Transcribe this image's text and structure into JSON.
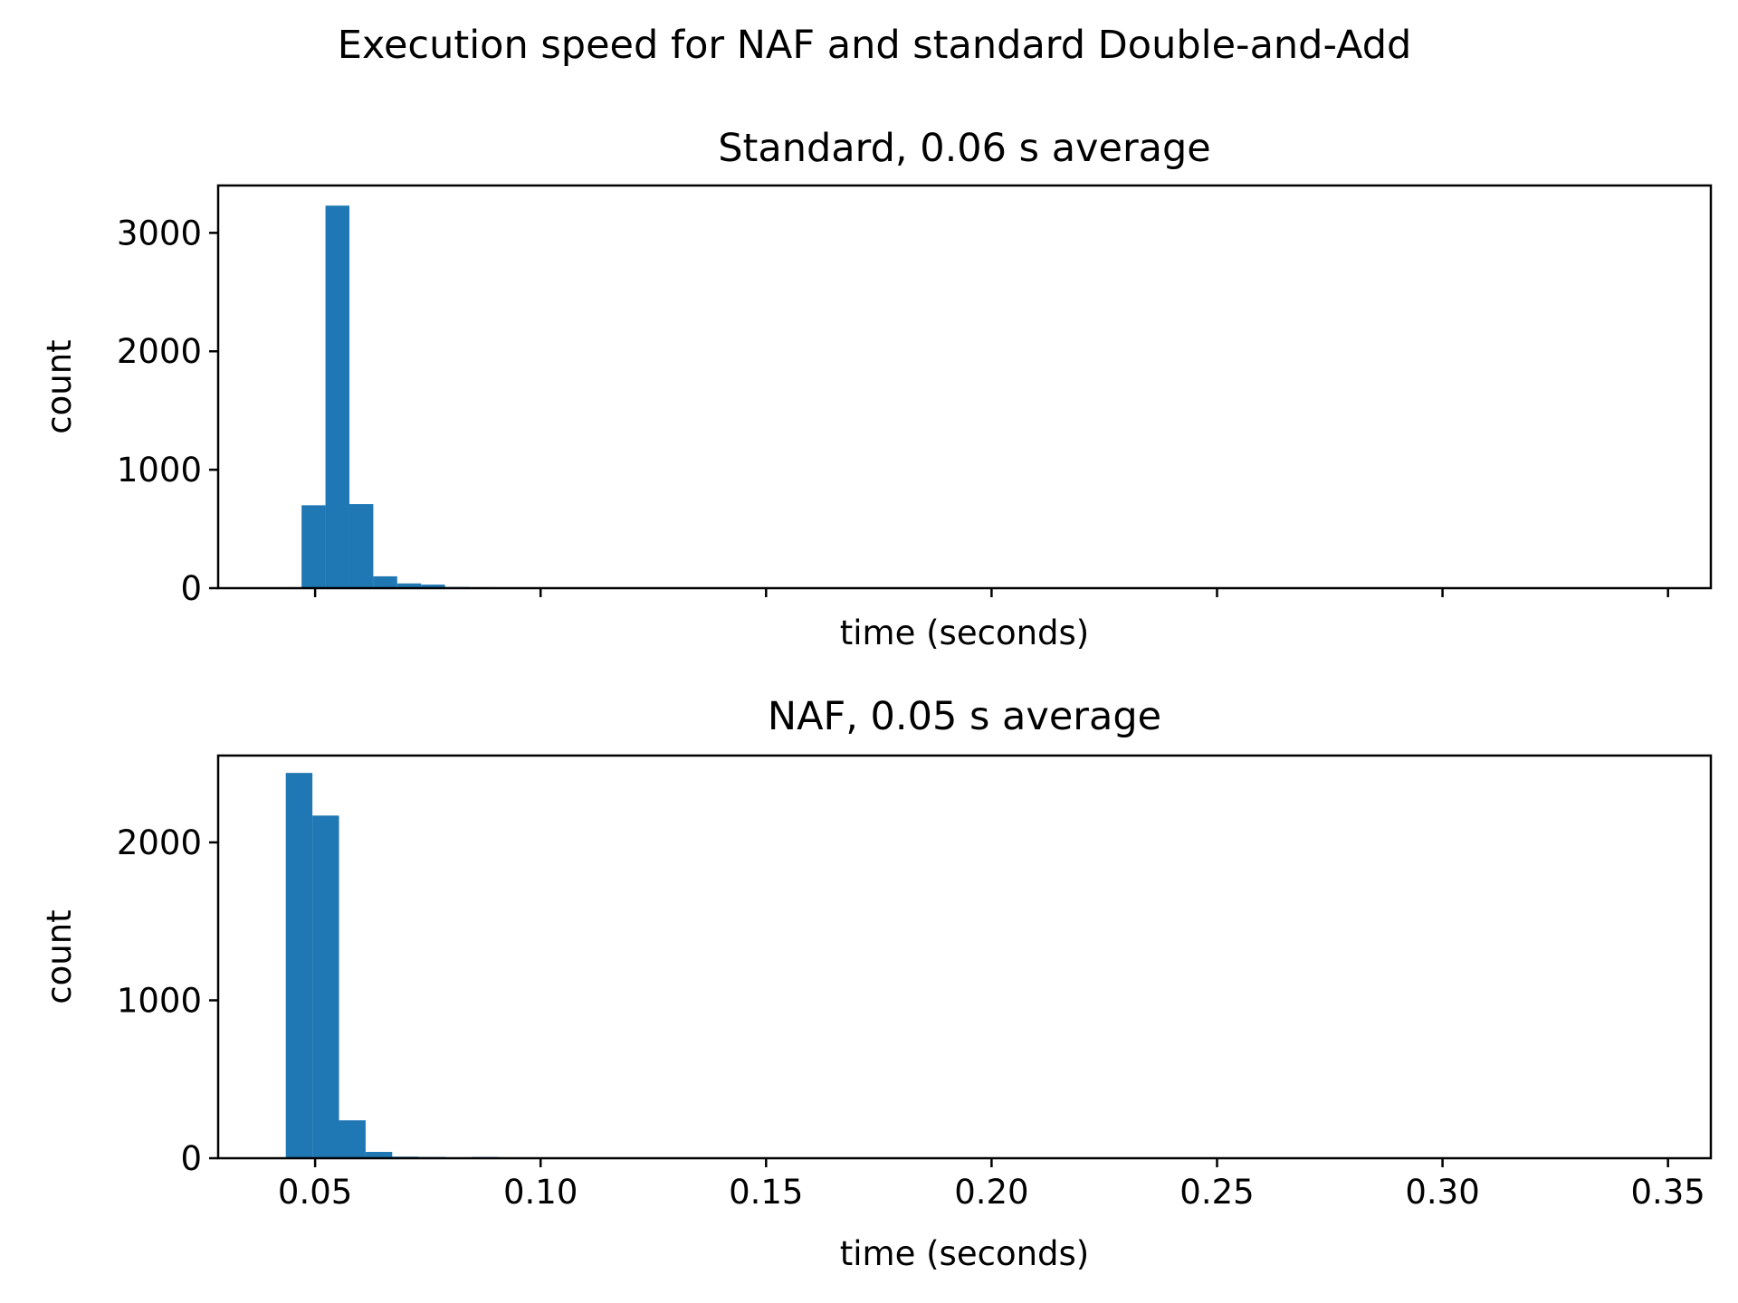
{
  "figure": {
    "suptitle": "Execution speed for NAF and standard Double-and-Add"
  },
  "chart_data": [
    {
      "type": "bar",
      "title": "Standard, 0.06 s average",
      "xlabel": "time (seconds)",
      "ylabel": "count",
      "xlim": [
        0.0285,
        0.3595
      ],
      "ylim": [
        0,
        3400
      ],
      "xticks": [
        0.05,
        0.1,
        0.15,
        0.2,
        0.25,
        0.3,
        0.35
      ],
      "xtick_labels_visible": false,
      "yticks": [
        0,
        1000,
        2000,
        3000
      ],
      "ytick_labels": [
        "0",
        "1000",
        "2000",
        "3000"
      ],
      "color": "#1f77b4",
      "grid": false,
      "bins": [
        {
          "x0": 0.047,
          "x1": 0.0523,
          "count": 700
        },
        {
          "x0": 0.0523,
          "x1": 0.0576,
          "count": 3230
        },
        {
          "x0": 0.0576,
          "x1": 0.0629,
          "count": 710
        },
        {
          "x0": 0.0629,
          "x1": 0.0682,
          "count": 100
        },
        {
          "x0": 0.0682,
          "x1": 0.0735,
          "count": 40
        },
        {
          "x0": 0.0735,
          "x1": 0.0788,
          "count": 30
        },
        {
          "x0": 0.0788,
          "x1": 0.0841,
          "count": 10
        },
        {
          "x0": 0.0841,
          "x1": 0.0894,
          "count": 8
        },
        {
          "x0": 0.0894,
          "x1": 0.0947,
          "count": 6
        },
        {
          "x0": 0.0947,
          "x1": 0.1,
          "count": 5
        },
        {
          "x0": 0.1,
          "x1": 0.1053,
          "count": 2
        },
        {
          "x0": 0.1053,
          "x1": 0.1106,
          "count": 6
        }
      ]
    },
    {
      "type": "bar",
      "title": "NAF, 0.05 s average",
      "xlabel": "time (seconds)",
      "ylabel": "count",
      "xlim": [
        0.0285,
        0.3595
      ],
      "ylim": [
        0,
        2550
      ],
      "xticks": [
        0.05,
        0.1,
        0.15,
        0.2,
        0.25,
        0.3,
        0.35
      ],
      "xtick_labels": [
        "0.05",
        "0.10",
        "0.15",
        "0.20",
        "0.25",
        "0.30",
        "0.35"
      ],
      "xtick_labels_visible": true,
      "yticks": [
        0,
        1000,
        2000
      ],
      "ytick_labels": [
        "0",
        "1000",
        "2000"
      ],
      "color": "#1f77b4",
      "grid": false,
      "bins": [
        {
          "x0": 0.0435,
          "x1": 0.0494,
          "count": 2440
        },
        {
          "x0": 0.0494,
          "x1": 0.0553,
          "count": 2170
        },
        {
          "x0": 0.0553,
          "x1": 0.0612,
          "count": 240
        },
        {
          "x0": 0.0612,
          "x1": 0.0671,
          "count": 40
        },
        {
          "x0": 0.0671,
          "x1": 0.073,
          "count": 10
        },
        {
          "x0": 0.073,
          "x1": 0.0789,
          "count": 8
        },
        {
          "x0": 0.0789,
          "x1": 0.0848,
          "count": 4
        },
        {
          "x0": 0.0848,
          "x1": 0.0907,
          "count": 8
        },
        {
          "x0": 0.0907,
          "x1": 0.0966,
          "count": 2
        }
      ]
    }
  ]
}
